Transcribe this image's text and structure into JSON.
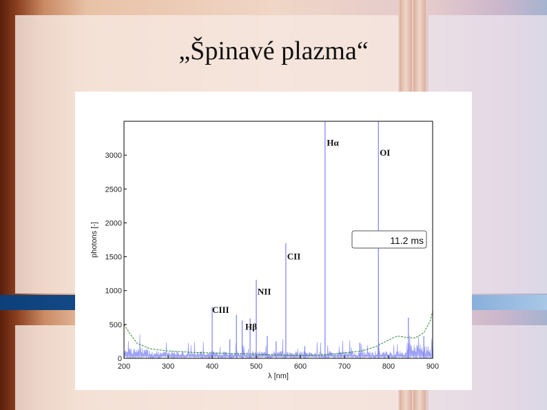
{
  "slide": {
    "title": "„Špinavé plazma“"
  },
  "chart_data": {
    "type": "line",
    "title": "",
    "xlabel": "λ [nm]",
    "ylabel": "photons [-]",
    "xlim": [
      200,
      900
    ],
    "ylim": [
      0,
      3500
    ],
    "xticks": [
      200,
      300,
      400,
      500,
      600,
      700,
      800,
      900
    ],
    "yticks": [
      0,
      500,
      1000,
      1500,
      2000,
      2500,
      3000
    ],
    "time_label": "11.2 ms",
    "grid": false,
    "colors": {
      "spectrum": "#7b7ff0",
      "baseline": "#2e8b2e"
    },
    "series": [
      {
        "peaks": [
          {
            "x": 400,
            "y": 760
          },
          {
            "x": 440,
            "y": 280
          },
          {
            "x": 455,
            "y": 640
          },
          {
            "x": 468,
            "y": 560
          },
          {
            "x": 486,
            "y": 590
          },
          {
            "x": 500,
            "y": 1160
          },
          {
            "x": 525,
            "y": 330
          },
          {
            "x": 545,
            "y": 250
          },
          {
            "x": 567,
            "y": 1700
          },
          {
            "x": 610,
            "y": 180
          },
          {
            "x": 656,
            "y": 3500
          },
          {
            "x": 735,
            "y": 230
          },
          {
            "x": 777,
            "y": 3500
          },
          {
            "x": 845,
            "y": 600
          },
          {
            "x": 880,
            "y": 330
          }
        ]
      },
      {
        "x": [
          200,
          215,
          230,
          260,
          300,
          350,
          400,
          450,
          500,
          550,
          600,
          650,
          700,
          740,
          770,
          800,
          820,
          840,
          860,
          880,
          895,
          900
        ],
        "y": [
          500,
          350,
          220,
          140,
          110,
          90,
          80,
          70,
          60,
          50,
          45,
          50,
          80,
          110,
          170,
          270,
          330,
          310,
          300,
          380,
          560,
          700
        ]
      }
    ],
    "annotations": [
      {
        "text": "Hα",
        "x": 660,
        "y": 3140
      },
      {
        "text": "OI",
        "x": 780,
        "y": 2990
      },
      {
        "text": "CII",
        "x": 570,
        "y": 1460
      },
      {
        "text": "NII",
        "x": 503,
        "y": 940
      },
      {
        "text": "CIII",
        "x": 400,
        "y": 670
      },
      {
        "text": "Hβ",
        "x": 475,
        "y": 420
      }
    ]
  }
}
